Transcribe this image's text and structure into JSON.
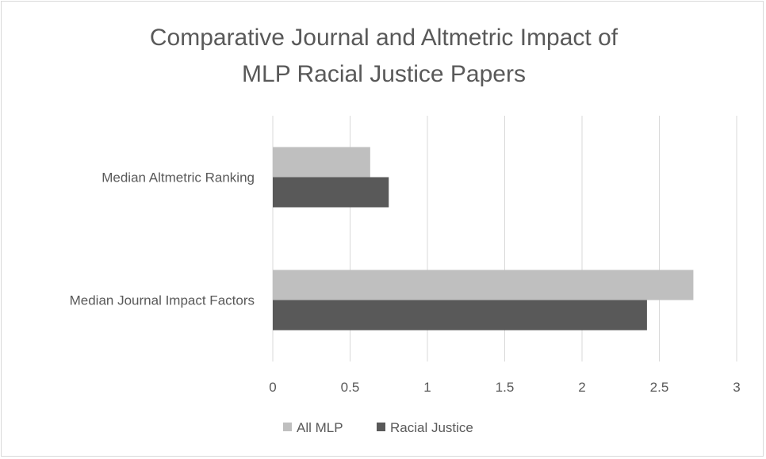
{
  "chart_data": {
    "type": "bar",
    "orientation": "horizontal",
    "title": [
      "Comparative Journal and Altmetric Impact of",
      "MLP Racial Justice Papers"
    ],
    "categories": [
      "Median Altmetric Ranking",
      "Median Journal Impact Factors"
    ],
    "series": [
      {
        "name": "All MLP",
        "values": [
          0.63,
          2.72
        ],
        "color": "#bfbfbf"
      },
      {
        "name": "Racial Justice",
        "values": [
          0.75,
          2.42
        ],
        "color": "#595959"
      }
    ],
    "xlim": [
      0,
      3
    ],
    "xticks": [
      "0",
      "0.5",
      "1",
      "1.5",
      "2",
      "2.5",
      "3"
    ],
    "grid": true,
    "legend_position": "bottom",
    "xlabel": "",
    "ylabel": ""
  }
}
